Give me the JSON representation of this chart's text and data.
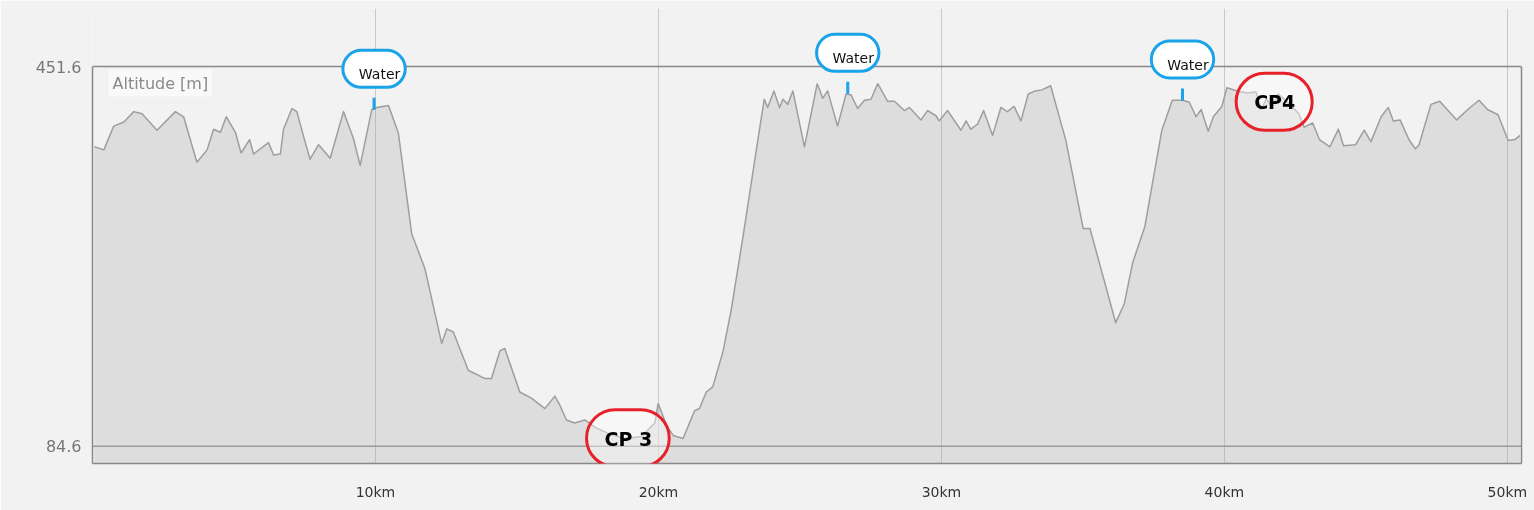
{
  "chart_data": {
    "type": "area",
    "ylabel": "Altitude [m]",
    "x": [
      0.07,
      0.4,
      0.75,
      1.11,
      1.46,
      1.75,
      2.28,
      2.93,
      3.22,
      3.69,
      4.05,
      4.28,
      4.52,
      4.73,
      5.05,
      5.25,
      5.55,
      5.69,
      6.22,
      6.4,
      6.64,
      6.75,
      7.05,
      7.22,
      7.52,
      7.69,
      7.99,
      8.4,
      8.87,
      9.22,
      9.46,
      9.87,
      10.05,
      10.46,
      10.81,
      11.28,
      11.75,
      12.34,
      12.52,
      12.75,
      13.28,
      13.87,
      14.1,
      14.4,
      14.57,
      15.1,
      15.51,
      15.99,
      16.34,
      16.52,
      16.75,
      17.04,
      17.4,
      17.75,
      18.22,
      18.81,
      19.4,
      19.87,
      19.99,
      20.28,
      20.52,
      20.87,
      21.28,
      21.45,
      21.69,
      21.92,
      22.28,
      22.57,
      23.04,
      23.51,
      23.74,
      23.86,
      24.08,
      24.28,
      24.4,
      24.57,
      24.75,
      25.16,
      25.61,
      25.81,
      25.98,
      26.33,
      26.63,
      26.81,
      27.04,
      27.28,
      27.51,
      27.75,
      28.1,
      28.34,
      28.69,
      28.87,
      29.28,
      29.51,
      29.81,
      29.92,
      30.22,
      30.69,
      30.87,
      31.04,
      31.28,
      31.49,
      31.81,
      32.1,
      32.33,
      32.57,
      32.81,
      33.07,
      33.31,
      33.55,
      33.86,
      34.4,
      35.01,
      35.25,
      36.16,
      36.46,
      36.76,
      37.19,
      37.79,
      38.16,
      38.52,
      38.76,
      39.0,
      39.18,
      39.43,
      39.61,
      39.91,
      40.09,
      40.45,
      40.82,
      41.12,
      41.3,
      41.49,
      41.67,
      41.91,
      42.27,
      42.63,
      42.82,
      43.12,
      43.36,
      43.73,
      44.03,
      44.21,
      44.64,
      44.94,
      45.18,
      45.54,
      45.79,
      45.97,
      46.21,
      46.52,
      46.75,
      46.88,
      47.3,
      47.61,
      48.21,
      48.64,
      49.0,
      49.3,
      49.67,
      50.03,
      50.27,
      50.45
    ],
    "series": [
      {
        "color": "#9e9e9e",
        "values": [
          374,
          371,
          394,
          398,
          408,
          406,
          390,
          408,
          403,
          359,
          371,
          391,
          388,
          403,
          388,
          368,
          381,
          367,
          378,
          366,
          367,
          391,
          411,
          408,
          378,
          362,
          376,
          363,
          408,
          382,
          356,
          410,
          412,
          414,
          387,
          290,
          256,
          184,
          198,
          195,
          158,
          150,
          150,
          177,
          179,
          137,
          131,
          121,
          133,
          124,
          110,
          107,
          110,
          103,
          97,
          92,
          94,
          107,
          126,
          105,
          95,
          92,
          119,
          121,
          137,
          142,
          176,
          216,
          296,
          380,
          420,
          412,
          428,
          412,
          420,
          415,
          428,
          374,
          435,
          421,
          428,
          394,
          425,
          424,
          411,
          419,
          420,
          435,
          418,
          418,
          409,
          412,
          400,
          409,
          404,
          399,
          409,
          390,
          399,
          391,
          396,
          409,
          385,
          412,
          408,
          413,
          399,
          425,
          428,
          429,
          433,
          380,
          295,
          295,
          204,
          222,
          262,
          297,
          390,
          419,
          419,
          417,
          403,
          410,
          389,
          403,
          413,
          431,
          428,
          426,
          427,
          410,
          420,
          413,
          425,
          416,
          406,
          393,
          397,
          381,
          374,
          391,
          375,
          376,
          390,
          379,
          403,
          412,
          399,
          400,
          381,
          372,
          376,
          415,
          418,
          400,
          411,
          419,
          410,
          405,
          380,
          381,
          385
        ]
      }
    ],
    "xlim": [
      0,
      50.5
    ],
    "ylim": [
      67.9,
      451.6
    ],
    "xticks": [
      {
        "value": 10,
        "label": "10km"
      },
      {
        "value": 20,
        "label": "20km"
      },
      {
        "value": 30,
        "label": "30km"
      },
      {
        "value": 40,
        "label": "40km"
      },
      {
        "value": 50,
        "label": "50km"
      }
    ],
    "yticks": [
      84.6,
      451.6
    ],
    "grid": "x",
    "ref_lines": [
      {
        "axis": "y",
        "value": 84.6,
        "color": "#999999"
      },
      {
        "axis": "y",
        "value": 451.6,
        "color": "#888888"
      }
    ],
    "annotations": [
      {
        "text": "Water",
        "x": 9.95,
        "y": 409.7
      },
      {
        "text": "CP 3",
        "x": 18.92
      },
      {
        "text": "Water",
        "x": 26.69,
        "y": 425.2
      },
      {
        "text": "Water",
        "x": 38.52,
        "y": 418.8
      },
      {
        "text": "CP4",
        "x": 41.76
      }
    ]
  }
}
